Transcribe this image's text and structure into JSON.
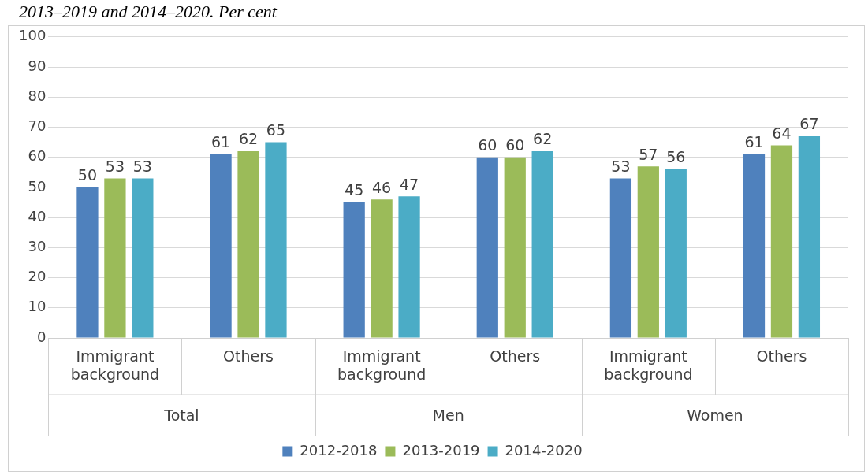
{
  "chart_data": {
    "type": "bar",
    "title": "2013–2019 and 2014–2020. Per cent",
    "categories": [
      "Immigrant background",
      "Others",
      "Immigrant background",
      "Others",
      "Immigrant background",
      "Others"
    ],
    "annotations": [
      "Total",
      "Men",
      "Women"
    ],
    "series": [
      {
        "name": "2012-2018",
        "color": "#4f81bd",
        "values": [
          50,
          61,
          45,
          60,
          53,
          61
        ]
      },
      {
        "name": "2013-2019",
        "color": "#9bbb59",
        "values": [
          53,
          62,
          46,
          60,
          57,
          64
        ]
      },
      {
        "name": "2014-2020",
        "color": "#4bacc6",
        "values": [
          53,
          65,
          47,
          62,
          56,
          67
        ]
      }
    ],
    "ylim": [
      0,
      100
    ],
    "yticks": [
      0,
      10,
      20,
      30,
      40,
      50,
      60,
      70,
      80,
      90,
      100
    ],
    "grid": "y",
    "legend": "bottom",
    "data_labels": true
  }
}
